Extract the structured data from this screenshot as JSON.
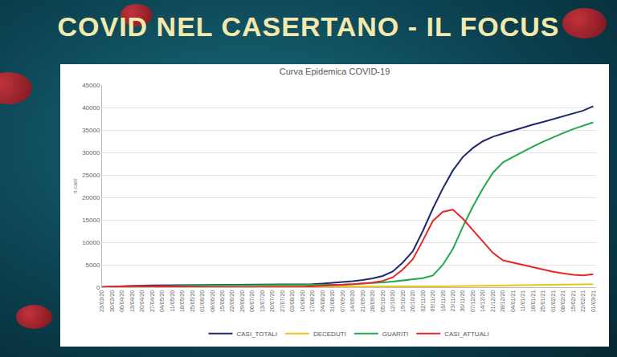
{
  "banner": "COVID NEL CASERTANO - IL FOCUS",
  "chart_data": {
    "type": "line",
    "title": "Curva Epidemica COVID-19",
    "y_label": "n casi",
    "x": [
      "2020-03-23",
      "2020-03-30",
      "2020-04-06",
      "2020-04-13",
      "2020-04-20",
      "2020-04-27",
      "2020-05-04",
      "2020-05-11",
      "2020-05-18",
      "2020-05-25",
      "2020-06-01",
      "2020-06-08",
      "2020-06-15",
      "2020-06-22",
      "2020-06-29",
      "2020-07-06",
      "2020-07-13",
      "2020-07-20",
      "2020-07-27",
      "2020-08-03",
      "2020-08-10",
      "2020-08-17",
      "2020-08-24",
      "2020-08-31",
      "2020-09-07",
      "2020-09-14",
      "2020-09-21",
      "2020-09-28",
      "2020-10-05",
      "2020-10-12",
      "2020-10-19",
      "2020-10-26",
      "2020-11-02",
      "2020-11-09",
      "2020-11-16",
      "2020-11-23",
      "2020-11-30",
      "2020-12-07",
      "2020-12-14",
      "2020-12-21",
      "2020-12-28",
      "2021-01-04",
      "2021-01-11",
      "2021-01-18",
      "2021-01-25",
      "2021-02-01",
      "2021-02-08",
      "2021-02-15",
      "2021-02-22",
      "2021-03-01"
    ],
    "series": [
      {
        "name": "CASI_TOTALI",
        "color": "#1f2a6b",
        "values": [
          50,
          150,
          250,
          320,
          370,
          400,
          420,
          430,
          435,
          440,
          445,
          450,
          455,
          460,
          470,
          480,
          495,
          510,
          530,
          550,
          590,
          680,
          820,
          980,
          1150,
          1350,
          1600,
          1950,
          2500,
          3500,
          5500,
          8000,
          12500,
          17500,
          22000,
          26000,
          29000,
          31000,
          32500,
          33500,
          34200,
          34900,
          35600,
          36200,
          36800,
          37400,
          38000,
          38600,
          39300,
          40300
        ]
      },
      {
        "name": "DECEDUTI",
        "color": "#f0c419",
        "values": [
          2,
          8,
          15,
          20,
          24,
          27,
          29,
          30,
          31,
          31,
          31,
          31,
          32,
          32,
          32,
          32,
          32,
          32,
          32,
          32,
          33,
          33,
          33,
          34,
          35,
          36,
          38,
          40,
          45,
          55,
          70,
          90,
          120,
          160,
          200,
          240,
          280,
          320,
          360,
          390,
          420,
          450,
          480,
          510,
          540,
          570,
          600,
          630,
          660,
          690
        ]
      },
      {
        "name": "GUARITI",
        "color": "#22a84a",
        "values": [
          0,
          5,
          20,
          50,
          100,
          180,
          250,
          300,
          340,
          370,
          390,
          400,
          410,
          415,
          420,
          425,
          430,
          435,
          440,
          445,
          450,
          460,
          480,
          520,
          580,
          660,
          760,
          900,
          1050,
          1250,
          1500,
          1700,
          2000,
          2600,
          5000,
          8500,
          13500,
          18000,
          22000,
          25500,
          27800,
          29000,
          30200,
          31300,
          32400,
          33400,
          34300,
          35200,
          36000,
          36700
        ]
      },
      {
        "name": "CASI_ATTUALI",
        "color": "#e8262b",
        "values": [
          48,
          137,
          215,
          250,
          246,
          193,
          141,
          100,
          64,
          39,
          24,
          19,
          13,
          13,
          18,
          23,
          33,
          43,
          58,
          73,
          107,
          187,
          307,
          426,
          535,
          654,
          802,
          1010,
          1405,
          2195,
          3930,
          6210,
          10380,
          14740,
          16800,
          17260,
          15220,
          12680,
          10140,
          7610,
          5980,
          5450,
          4920,
          4390,
          3860,
          3430,
          3100,
          2770,
          2640,
          2910
        ]
      }
    ],
    "xlim": [
      "2020-03-23",
      "2021-03-03"
    ],
    "xticks": [
      {
        "value": "2020-03-23",
        "label": "23/03/20"
      },
      {
        "value": "2020-03-30",
        "label": "30/03/20"
      },
      {
        "value": "2020-04-06",
        "label": "06/04/20"
      },
      {
        "value": "2020-04-13",
        "label": "13/04/20"
      },
      {
        "value": "2020-04-20",
        "label": "20/04/20"
      },
      {
        "value": "2020-04-27",
        "label": "27/04/20"
      },
      {
        "value": "2020-05-04",
        "label": "04/05/20"
      },
      {
        "value": "2020-05-11",
        "label": "11/05/20"
      },
      {
        "value": "2020-05-18",
        "label": "18/05/20"
      },
      {
        "value": "2020-05-25",
        "label": "25/05/20"
      },
      {
        "value": "2020-06-01",
        "label": "01/06/20"
      },
      {
        "value": "2020-06-08",
        "label": "08/06/20"
      },
      {
        "value": "2020-06-15",
        "label": "15/06/20"
      },
      {
        "value": "2020-06-22",
        "label": "22/06/20"
      },
      {
        "value": "2020-06-29",
        "label": "29/06/20"
      },
      {
        "value": "2020-07-06",
        "label": "06/07/20"
      },
      {
        "value": "2020-07-13",
        "label": "13/07/20"
      },
      {
        "value": "2020-07-20",
        "label": "20/07/20"
      },
      {
        "value": "2020-07-27",
        "label": "27/07/20"
      },
      {
        "value": "2020-08-03",
        "label": "03/08/20"
      },
      {
        "value": "2020-08-10",
        "label": "10/08/20"
      },
      {
        "value": "2020-08-17",
        "label": "17/08/20"
      },
      {
        "value": "2020-08-24",
        "label": "24/08/20"
      },
      {
        "value": "2020-08-31",
        "label": "31/08/20"
      },
      {
        "value": "2020-09-07",
        "label": "07/09/20"
      },
      {
        "value": "2020-09-14",
        "label": "14/09/20"
      },
      {
        "value": "2020-09-21",
        "label": "21/09/20"
      },
      {
        "value": "2020-09-28",
        "label": "28/09/20"
      },
      {
        "value": "2020-10-05",
        "label": "05/10/20"
      },
      {
        "value": "2020-10-12",
        "label": "12/10/20"
      },
      {
        "value": "2020-10-19",
        "label": "19/10/20"
      },
      {
        "value": "2020-10-26",
        "label": "26/10/20"
      },
      {
        "value": "2020-11-02",
        "label": "02/11/20"
      },
      {
        "value": "2020-11-09",
        "label": "09/11/20"
      },
      {
        "value": "2020-11-16",
        "label": "16/11/20"
      },
      {
        "value": "2020-11-23",
        "label": "23/11/20"
      },
      {
        "value": "2020-11-30",
        "label": "30/11/20"
      },
      {
        "value": "2020-12-07",
        "label": "07/12/20"
      },
      {
        "value": "2020-12-14",
        "label": "14/12/20"
      },
      {
        "value": "2020-12-21",
        "label": "21/12/20"
      },
      {
        "value": "2020-12-28",
        "label": "28/12/20"
      },
      {
        "value": "2021-01-04",
        "label": "04/01/21"
      },
      {
        "value": "2021-01-11",
        "label": "11/01/21"
      },
      {
        "value": "2021-01-18",
        "label": "18/01/21"
      },
      {
        "value": "2021-01-25",
        "label": "25/01/21"
      },
      {
        "value": "2021-02-01",
        "label": "01/02/21"
      },
      {
        "value": "2021-02-08",
        "label": "08/02/21"
      },
      {
        "value": "2021-02-15",
        "label": "15/02/21"
      },
      {
        "value": "2021-02-22",
        "label": "22/02/21"
      },
      {
        "value": "2021-03-01",
        "label": "01/03/21"
      }
    ],
    "ylim": [
      0,
      45000
    ],
    "yticks": [
      0,
      5000,
      10000,
      15000,
      20000,
      25000,
      30000,
      35000,
      40000,
      45000
    ],
    "grid": true,
    "legend": "bottom"
  }
}
